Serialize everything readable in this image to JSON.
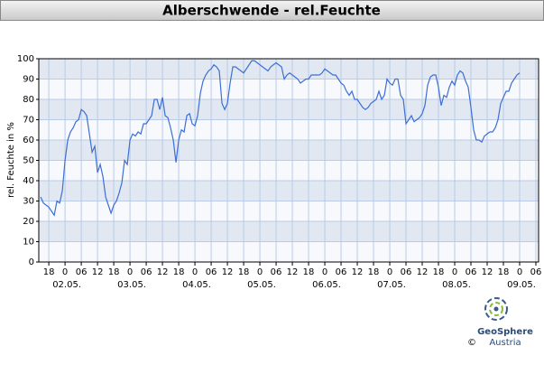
{
  "header": {
    "title": "Alberschwende - rel.Feuchte"
  },
  "chart_data": {
    "type": "line",
    "y_label": "rel. Feuchte in %",
    "color": "#3d6fd6",
    "grid": true,
    "bands": true,
    "xlim": [
      14.3,
      199
    ],
    "ylim": [
      0,
      100
    ],
    "yticks": [
      0,
      10,
      20,
      30,
      40,
      50,
      60,
      70,
      80,
      90,
      100
    ],
    "xticks": [
      {
        "value": 18,
        "label": "18"
      },
      {
        "value": 24,
        "label": "0"
      },
      {
        "value": 30,
        "label": "06"
      },
      {
        "value": 36,
        "label": "12"
      },
      {
        "value": 42,
        "label": "18"
      },
      {
        "value": 48,
        "label": "0"
      },
      {
        "value": 54,
        "label": "06"
      },
      {
        "value": 60,
        "label": "12"
      },
      {
        "value": 66,
        "label": "18"
      },
      {
        "value": 72,
        "label": "0"
      },
      {
        "value": 78,
        "label": "06"
      },
      {
        "value": 84,
        "label": "12"
      },
      {
        "value": 90,
        "label": "18"
      },
      {
        "value": 96,
        "label": "0"
      },
      {
        "value": 102,
        "label": "06"
      },
      {
        "value": 108,
        "label": "12"
      },
      {
        "value": 114,
        "label": "18"
      },
      {
        "value": 120,
        "label": "0"
      },
      {
        "value": 126,
        "label": "06"
      },
      {
        "value": 132,
        "label": "12"
      },
      {
        "value": 138,
        "label": "18"
      },
      {
        "value": 144,
        "label": "0"
      },
      {
        "value": 150,
        "label": "06"
      },
      {
        "value": 156,
        "label": "12"
      },
      {
        "value": 162,
        "label": "18"
      },
      {
        "value": 168,
        "label": "0"
      },
      {
        "value": 174,
        "label": "06"
      },
      {
        "value": 180,
        "label": "12"
      },
      {
        "value": 186,
        "label": "18"
      },
      {
        "value": 192,
        "label": "0"
      },
      {
        "value": 198,
        "label": "06"
      }
    ],
    "date_ticks": [
      {
        "value": 24,
        "label": "02.05."
      },
      {
        "value": 48,
        "label": "03.05."
      },
      {
        "value": 72,
        "label": "04.05."
      },
      {
        "value": 96,
        "label": "05.05."
      },
      {
        "value": 120,
        "label": "06.05."
      },
      {
        "value": 144,
        "label": "07.05."
      },
      {
        "value": 168,
        "label": "08.05."
      },
      {
        "value": 192,
        "label": "09.05."
      }
    ],
    "x": [
      15,
      16,
      17,
      18,
      19,
      20,
      21,
      22,
      23,
      24,
      25,
      26,
      27,
      28,
      29,
      30,
      31,
      32,
      33,
      34,
      35,
      36,
      37,
      38,
      39,
      40,
      41,
      42,
      43,
      44,
      45,
      46,
      47,
      48,
      49,
      50,
      51,
      52,
      53,
      54,
      55,
      56,
      57,
      58,
      59,
      60,
      61,
      62,
      63,
      64,
      65,
      66,
      67,
      68,
      69,
      70,
      71,
      72,
      73,
      74,
      75,
      76,
      77,
      78,
      79,
      80,
      81,
      82,
      83,
      84,
      85,
      86,
      87,
      88,
      89,
      90,
      91,
      92,
      93,
      94,
      95,
      96,
      97,
      98,
      99,
      100,
      101,
      102,
      103,
      104,
      105,
      106,
      107,
      108,
      109,
      110,
      111,
      112,
      113,
      114,
      115,
      116,
      117,
      118,
      119,
      120,
      121,
      122,
      123,
      124,
      125,
      126,
      127,
      128,
      129,
      130,
      131,
      132,
      133,
      134,
      135,
      136,
      137,
      138,
      139,
      140,
      141,
      142,
      143,
      144,
      145,
      146,
      147,
      148,
      149,
      150,
      151,
      152,
      153,
      154,
      155,
      156,
      157,
      158,
      159,
      160,
      161,
      162,
      163,
      164,
      165,
      166,
      167,
      168,
      169,
      170,
      171,
      172,
      173,
      174,
      175,
      176,
      177,
      178,
      179,
      180,
      181,
      182,
      183,
      184,
      185,
      186,
      187,
      188,
      189,
      190,
      191,
      192
    ],
    "values": [
      32,
      29,
      28,
      27,
      25,
      23,
      30,
      29,
      35,
      50,
      60,
      64,
      66,
      69,
      70,
      75,
      74,
      72,
      63,
      54,
      57,
      44,
      48,
      42,
      32,
      28,
      24,
      28,
      30,
      34,
      39,
      50,
      48,
      60,
      63,
      62,
      64,
      63,
      68,
      68,
      70,
      72,
      80,
      80,
      75,
      81,
      72,
      71,
      66,
      60,
      49,
      60,
      65,
      64,
      72,
      73,
      68,
      67,
      72,
      83,
      89,
      92,
      94,
      95,
      97,
      96,
      94,
      78,
      75,
      78,
      88,
      96,
      96,
      95,
      94,
      93,
      95,
      97,
      99,
      99,
      98,
      97,
      96,
      95,
      94,
      96,
      97,
      98,
      97,
      96,
      90,
      92,
      93,
      92,
      91,
      90,
      88,
      89,
      90,
      90,
      92,
      92,
      92,
      92,
      93,
      95,
      94,
      93,
      92,
      92,
      90,
      88,
      87,
      84,
      82,
      84,
      80,
      80,
      78,
      76,
      75,
      76,
      78,
      79,
      80,
      84,
      80,
      82,
      90,
      88,
      87,
      90,
      90,
      82,
      80,
      68,
      70,
      72,
      69,
      70,
      71,
      73,
      77,
      87,
      91,
      92,
      92,
      86,
      77,
      82,
      81,
      86,
      89,
      87,
      92,
      94,
      93,
      89,
      86,
      76,
      65,
      60,
      60,
      59,
      62,
      63,
      64,
      64,
      66,
      70,
      78,
      81,
      84,
      84,
      88,
      90,
      92,
      93
    ]
  },
  "footer": {
    "brand": "GeoSphere",
    "country": "Austria",
    "copyright": "©"
  }
}
